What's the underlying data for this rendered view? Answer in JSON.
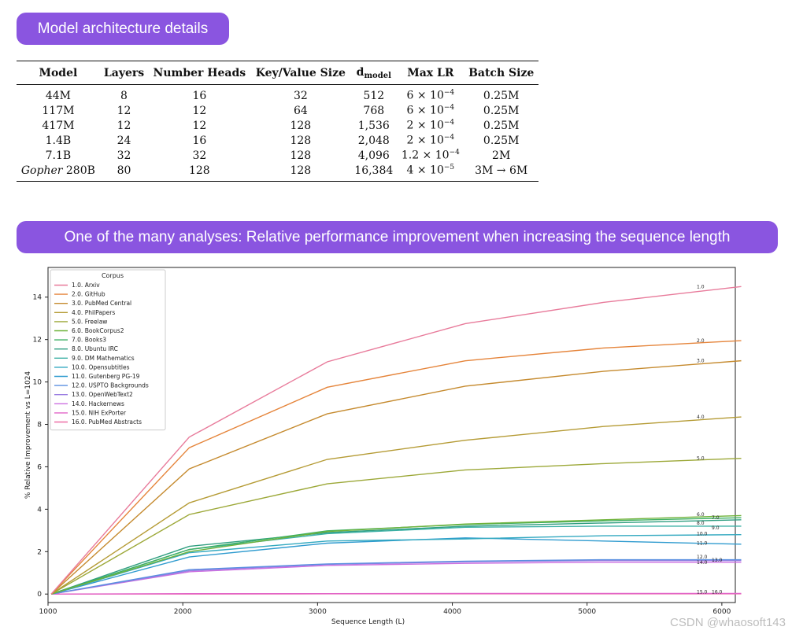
{
  "header_pill": "Model architecture details",
  "table": {
    "headers": {
      "model": "Model",
      "layers": "Layers",
      "heads": "Number Heads",
      "kv": "Key/Value Size",
      "dmodel_main": "d",
      "dmodel_sub": "model",
      "lr": "Max LR",
      "batch": "Batch Size"
    },
    "rows": [
      {
        "model_prefix": "",
        "model": "44M",
        "layers": "8",
        "heads": "16",
        "kv": "32",
        "dmodel": "512",
        "lr_base": "6 × 10",
        "lr_exp": "−4",
        "batch": "0.25M"
      },
      {
        "model_prefix": "",
        "model": "117M",
        "layers": "12",
        "heads": "12",
        "kv": "64",
        "dmodel": "768",
        "lr_base": "6 × 10",
        "lr_exp": "−4",
        "batch": "0.25M"
      },
      {
        "model_prefix": "",
        "model": "417M",
        "layers": "12",
        "heads": "12",
        "kv": "128",
        "dmodel": "1,536",
        "lr_base": "2 × 10",
        "lr_exp": "−4",
        "batch": "0.25M"
      },
      {
        "model_prefix": "",
        "model": "1.4B",
        "layers": "24",
        "heads": "16",
        "kv": "128",
        "dmodel": "2,048",
        "lr_base": "2 × 10",
        "lr_exp": "−4",
        "batch": "0.25M"
      },
      {
        "model_prefix": "",
        "model": "7.1B",
        "layers": "32",
        "heads": "32",
        "kv": "128",
        "dmodel": "4,096",
        "lr_base": "1.2 × 10",
        "lr_exp": "−4",
        "batch": "2M"
      },
      {
        "model_prefix": "Gopher",
        "model": " 280B",
        "layers": "80",
        "heads": "128",
        "kv": "128",
        "dmodel": "16,384",
        "lr_base": "4 × 10",
        "lr_exp": "−5",
        "batch": "3M → 6M"
      }
    ]
  },
  "analysis_pill": "One of the many analyses: Relative performance improvement when increasing the sequence length",
  "watermark": "CSDN @whaosoft143",
  "chart_data": {
    "type": "line",
    "title": "",
    "xlabel": "Sequence Length (L)",
    "ylabel": "% Relative Improvement vs L=1024",
    "xlim": [
      1000,
      6100
    ],
    "ylim": [
      -0.4,
      15.4
    ],
    "xticks": [
      1000,
      2000,
      3000,
      4000,
      5000,
      6000
    ],
    "xtick_labels": [
      "1000",
      "2000",
      "3000",
      "4000",
      "5000",
      "6000"
    ],
    "yticks": [
      0,
      2,
      4,
      6,
      8,
      10,
      12,
      14
    ],
    "ytick_labels": [
      "0",
      "2",
      "4",
      "6",
      "8",
      "10",
      "12",
      "14"
    ],
    "legend_title": "Corpus",
    "legend_position": "top-left",
    "grid": false,
    "x": [
      1024,
      2048,
      3072,
      4096,
      5120,
      6144
    ],
    "series": [
      {
        "name": "1.0. Arxiv",
        "end_label": "1.0",
        "color": "#e87b9b",
        "values": [
          0,
          7.4,
          10.95,
          12.75,
          13.75,
          14.5
        ]
      },
      {
        "name": "2.0. GitHub",
        "end_label": "2.0",
        "color": "#e5843a",
        "values": [
          0,
          6.9,
          9.75,
          11.0,
          11.6,
          11.95
        ]
      },
      {
        "name": "3.0. PubMed Central",
        "end_label": "3.0",
        "color": "#c58a2e",
        "values": [
          0,
          5.9,
          8.5,
          9.8,
          10.5,
          11.0
        ]
      },
      {
        "name": "4.0. PhilPapers",
        "end_label": "4.0",
        "color": "#b59b35",
        "values": [
          0,
          4.3,
          6.35,
          7.25,
          7.9,
          8.35
        ]
      },
      {
        "name": "5.0. Freelaw",
        "end_label": "5.0",
        "color": "#9ca838",
        "values": [
          0,
          3.75,
          5.2,
          5.85,
          6.15,
          6.4
        ]
      },
      {
        "name": "6.0. BookCorpus2",
        "end_label": "6.0",
        "color": "#6fb23a",
        "values": [
          0,
          2.0,
          2.95,
          3.3,
          3.5,
          3.7
        ]
      },
      {
        "name": "7.0. Books3",
        "end_label": "7.0",
        "color": "#3fb064",
        "values": [
          0,
          2.1,
          2.98,
          3.28,
          3.45,
          3.6
        ]
      },
      {
        "name": "8.0. Ubuntu IRC",
        "end_label": "8.0",
        "color": "#2f9e80",
        "values": [
          0,
          2.25,
          2.9,
          3.2,
          3.35,
          3.5
        ]
      },
      {
        "name": "9.0. DM Mathematics",
        "end_label": "9.0",
        "color": "#3bb0a5",
        "values": [
          0,
          2.1,
          2.85,
          3.15,
          3.2,
          3.2
        ]
      },
      {
        "name": "10.0. Opensubtitles",
        "end_label": "10.0",
        "color": "#33a9c0",
        "values": [
          0,
          1.95,
          2.5,
          2.6,
          2.75,
          2.8
        ]
      },
      {
        "name": "11.0. Gutenberg PG-19",
        "end_label": "11.0",
        "color": "#2f9bcf",
        "values": [
          0,
          1.75,
          2.4,
          2.65,
          2.5,
          2.35
        ]
      },
      {
        "name": "12.0. USPTO Backgrounds",
        "end_label": "12.0",
        "color": "#5a8fe0",
        "values": [
          0,
          1.15,
          1.42,
          1.55,
          1.62,
          1.62
        ]
      },
      {
        "name": "13.0. OpenWebText2",
        "end_label": "13.0",
        "color": "#9a7de2",
        "values": [
          0,
          1.1,
          1.4,
          1.52,
          1.58,
          1.58
        ]
      },
      {
        "name": "14.0. Hackernews",
        "end_label": "14.0",
        "color": "#cc6fe0",
        "values": [
          0,
          1.05,
          1.35,
          1.45,
          1.5,
          1.5
        ]
      },
      {
        "name": "15.0. NIH ExPorter",
        "end_label": "15.0",
        "color": "#e265c8",
        "values": [
          0,
          0.02,
          0.02,
          0.03,
          0.03,
          0.03
        ]
      },
      {
        "name": "16.0. PubMed Abstracts",
        "end_label": "16.0",
        "color": "#ee6fa6",
        "values": [
          0,
          0.0,
          0.01,
          0.01,
          0.01,
          0.01
        ]
      }
    ]
  }
}
